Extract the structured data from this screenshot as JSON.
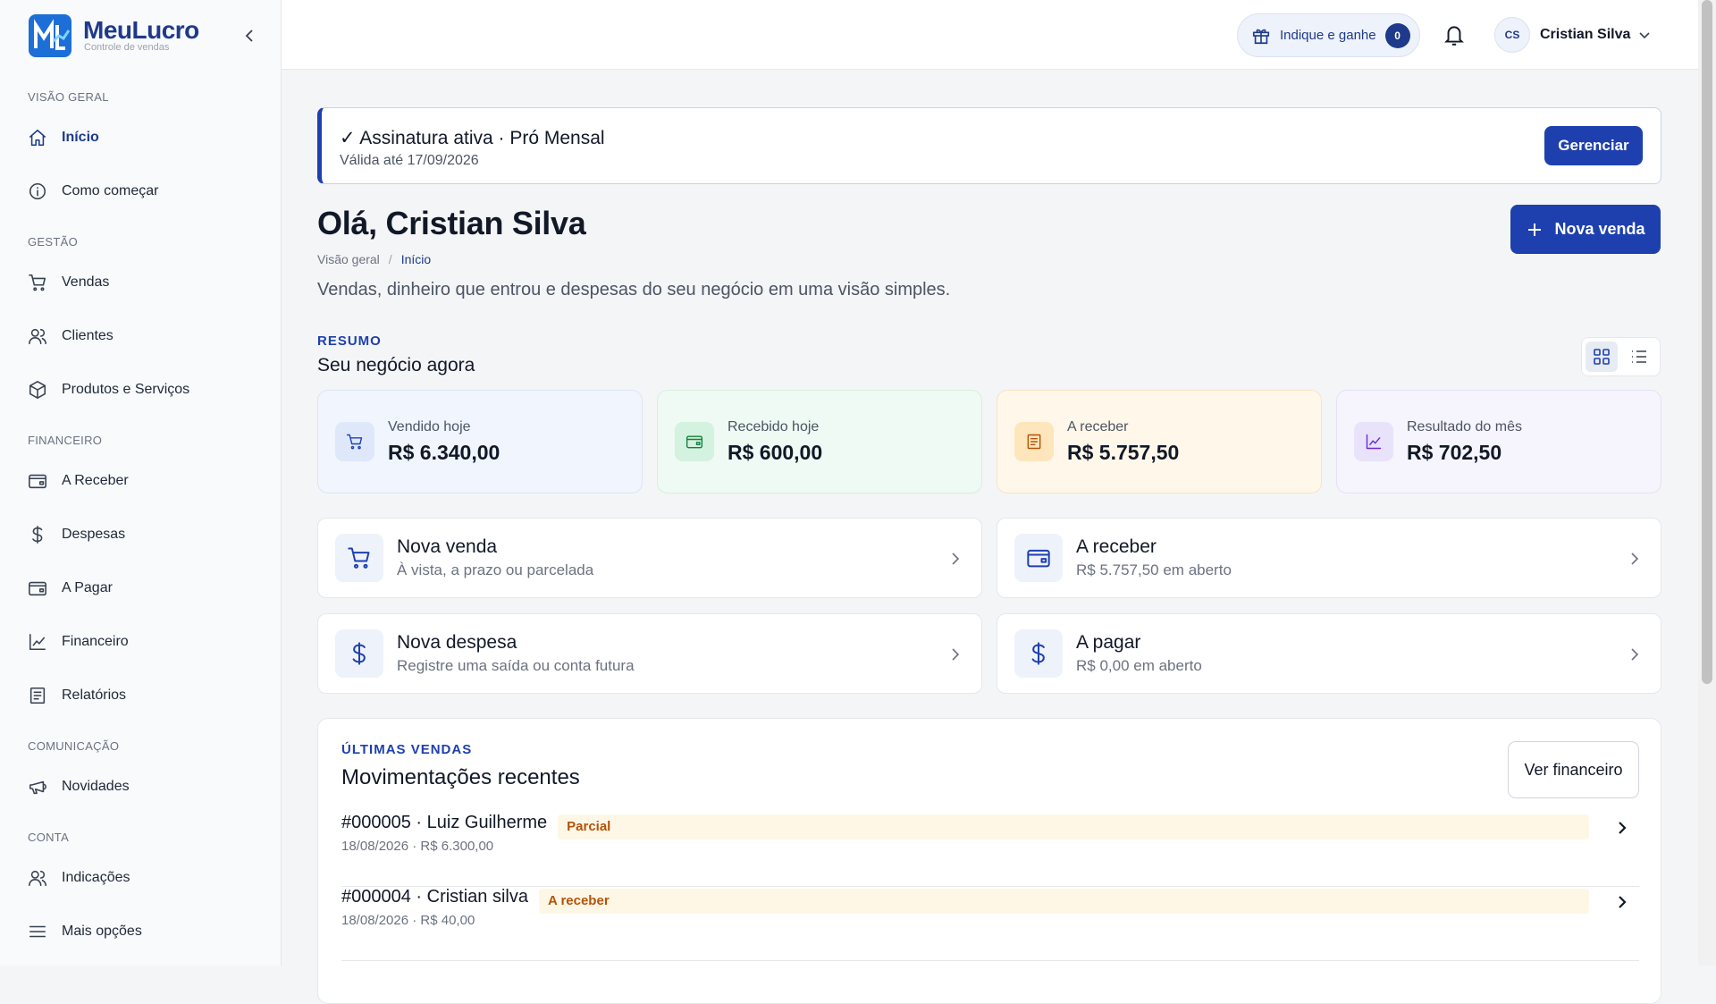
{
  "brand": {
    "name": "MeuLucro",
    "tagline": "Controle de vendas"
  },
  "sidebar": [
    {
      "label": "VISÃO GERAL",
      "items": [
        "Início",
        "Como começar"
      ]
    },
    {
      "label": "GESTÃO",
      "items": [
        "Vendas",
        "Clientes",
        "Produtos e Serviços"
      ]
    },
    {
      "label": "FINANCEIRO",
      "items": [
        "A Receber",
        "Despesas",
        "A Pagar",
        "Financeiro",
        "Relatórios"
      ]
    },
    {
      "label": "COMUNICAÇÃO",
      "items": [
        "Novidades"
      ]
    },
    {
      "label": "CONTA",
      "items": [
        "Indicações",
        "Mais opções"
      ]
    }
  ],
  "topbar": {
    "referral": "Indique e ganhe",
    "referral_count": 0,
    "avatar": "CS",
    "user": "Cristian Silva"
  },
  "banner": {
    "title": "✓ Assinatura ativa · Pró Mensal",
    "subtitle": "Válida até 17/09/2026",
    "button": "Gerenciar"
  },
  "header": {
    "greeting": "Olá, Cristian Silva",
    "breadcrumb": [
      "Visão geral",
      "Início"
    ],
    "description": "Vendas, dinheiro que entrou e despesas do seu negócio em uma visão simples.",
    "button": "Nova venda"
  },
  "summary": {
    "eyebrow": "RESUMO",
    "title": "Seu negócio agora",
    "cards": [
      {
        "label": "Vendido hoje",
        "value": "R$ 6.340,00"
      },
      {
        "label": "Recebido hoje",
        "value": "R$ 600,00"
      },
      {
        "label": "A receber",
        "value": "R$ 5.757,50"
      },
      {
        "label": "Resultado do mês",
        "value": "R$ 702,50"
      }
    ]
  },
  "actions": [
    {
      "title": "Nova venda",
      "subtitle": "À vista, a prazo ou parcelada"
    },
    {
      "title": "A receber",
      "subtitle": "R$ 5.757,50 em aberto"
    },
    {
      "title": "Nova despesa",
      "subtitle": "Registre uma saída ou conta futura"
    },
    {
      "title": "A pagar",
      "subtitle": "R$ 0,00 em aberto"
    }
  ],
  "recent": {
    "eyebrow": "ÚLTIMAS VENDAS",
    "title": "Movimentações recentes",
    "button": "Ver financeiro",
    "rows": [
      {
        "title": "#000005 · Luiz Guilherme",
        "meta": "18/08/2026 · R$ 6.300,00",
        "status": "Parcial"
      },
      {
        "title": "#000004 · Cristian silva",
        "meta": "18/08/2026 · R$ 40,00",
        "status": "A receber"
      }
    ]
  }
}
